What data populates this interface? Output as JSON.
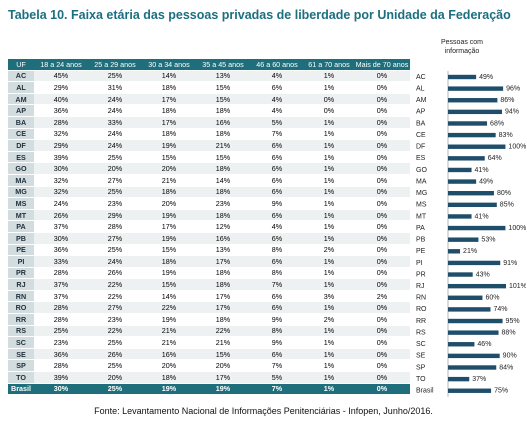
{
  "title": "Tabela 10. Faixa etária das pessoas privadas de liberdade por Unidade da Federação",
  "table": {
    "header": [
      "UF",
      "18 a 24 anos",
      "25 a 29 anos",
      "30 a 34 anos",
      "35 a 45 anos",
      "46 a 60 anos",
      "61 a 70 anos",
      "Mais de 70 anos"
    ],
    "rows": [
      [
        "AC",
        "45%",
        "25%",
        "14%",
        "13%",
        "4%",
        "1%",
        "0%"
      ],
      [
        "AL",
        "29%",
        "31%",
        "18%",
        "15%",
        "6%",
        "1%",
        "0%"
      ],
      [
        "AM",
        "40%",
        "24%",
        "17%",
        "15%",
        "4%",
        "0%",
        "0%"
      ],
      [
        "AP",
        "36%",
        "24%",
        "18%",
        "18%",
        "4%",
        "0%",
        "0%"
      ],
      [
        "BA",
        "28%",
        "33%",
        "17%",
        "16%",
        "5%",
        "1%",
        "0%"
      ],
      [
        "CE",
        "32%",
        "24%",
        "18%",
        "18%",
        "7%",
        "1%",
        "0%"
      ],
      [
        "DF",
        "29%",
        "24%",
        "19%",
        "21%",
        "6%",
        "1%",
        "0%"
      ],
      [
        "ES",
        "39%",
        "25%",
        "15%",
        "15%",
        "6%",
        "1%",
        "0%"
      ],
      [
        "GO",
        "30%",
        "20%",
        "20%",
        "18%",
        "6%",
        "1%",
        "0%"
      ],
      [
        "MA",
        "32%",
        "27%",
        "21%",
        "14%",
        "6%",
        "1%",
        "0%"
      ],
      [
        "MG",
        "32%",
        "25%",
        "18%",
        "18%",
        "6%",
        "1%",
        "0%"
      ],
      [
        "MS",
        "24%",
        "23%",
        "20%",
        "23%",
        "9%",
        "1%",
        "0%"
      ],
      [
        "MT",
        "26%",
        "29%",
        "19%",
        "18%",
        "6%",
        "1%",
        "0%"
      ],
      [
        "PA",
        "37%",
        "28%",
        "17%",
        "12%",
        "4%",
        "1%",
        "0%"
      ],
      [
        "PB",
        "30%",
        "27%",
        "19%",
        "16%",
        "6%",
        "1%",
        "0%"
      ],
      [
        "PE",
        "36%",
        "25%",
        "15%",
        "13%",
        "8%",
        "2%",
        "0%"
      ],
      [
        "PI",
        "33%",
        "24%",
        "18%",
        "17%",
        "6%",
        "1%",
        "0%"
      ],
      [
        "PR",
        "28%",
        "26%",
        "19%",
        "18%",
        "8%",
        "1%",
        "0%"
      ],
      [
        "RJ",
        "37%",
        "22%",
        "15%",
        "18%",
        "7%",
        "1%",
        "0%"
      ],
      [
        "RN",
        "37%",
        "22%",
        "14%",
        "17%",
        "6%",
        "3%",
        "2%"
      ],
      [
        "RO",
        "28%",
        "27%",
        "22%",
        "17%",
        "6%",
        "1%",
        "0%"
      ],
      [
        "RR",
        "28%",
        "23%",
        "19%",
        "18%",
        "9%",
        "2%",
        "0%"
      ],
      [
        "RS",
        "25%",
        "22%",
        "21%",
        "22%",
        "8%",
        "1%",
        "0%"
      ],
      [
        "SC",
        "23%",
        "25%",
        "21%",
        "21%",
        "9%",
        "1%",
        "0%"
      ],
      [
        "SE",
        "36%",
        "26%",
        "16%",
        "15%",
        "6%",
        "1%",
        "0%"
      ],
      [
        "SP",
        "28%",
        "25%",
        "20%",
        "20%",
        "7%",
        "1%",
        "0%"
      ],
      [
        "TO",
        "39%",
        "20%",
        "18%",
        "17%",
        "5%",
        "1%",
        "0%"
      ],
      [
        "Brasil",
        "30%",
        "25%",
        "19%",
        "19%",
        "7%",
        "1%",
        "0%"
      ]
    ]
  },
  "chart_data": {
    "type": "bar",
    "orientation": "horizontal",
    "title": "Pessoas com informação",
    "color": "#1f4e6b",
    "categories": [
      "AC",
      "AL",
      "AM",
      "AP",
      "BA",
      "CE",
      "DF",
      "ES",
      "GO",
      "MA",
      "MG",
      "MS",
      "MT",
      "PA",
      "PB",
      "PE",
      "PI",
      "PR",
      "RJ",
      "RN",
      "RO",
      "RR",
      "RS",
      "SC",
      "SE",
      "SP",
      "TO",
      "Brasil"
    ],
    "values": [
      49,
      96,
      86,
      94,
      68,
      83,
      100,
      64,
      41,
      49,
      80,
      85,
      41,
      100,
      53,
      21,
      91,
      43,
      101,
      60,
      74,
      95,
      88,
      46,
      90,
      84,
      37,
      75
    ],
    "value_labels": [
      "49%",
      "96%",
      "86%",
      "94%",
      "68%",
      "83%",
      "100%",
      "64%",
      "41%",
      "49%",
      "80%",
      "85%",
      "41%",
      "100%",
      "53%",
      "21%",
      "91%",
      "43%",
      "101%",
      "60%",
      "74%",
      "95%",
      "88%",
      "46%",
      "90%",
      "84%",
      "37%",
      "75%"
    ]
  },
  "source": "Fonte: Levantamento Nacional de Informações Penitenciárias - Infopen, Junho/2016."
}
